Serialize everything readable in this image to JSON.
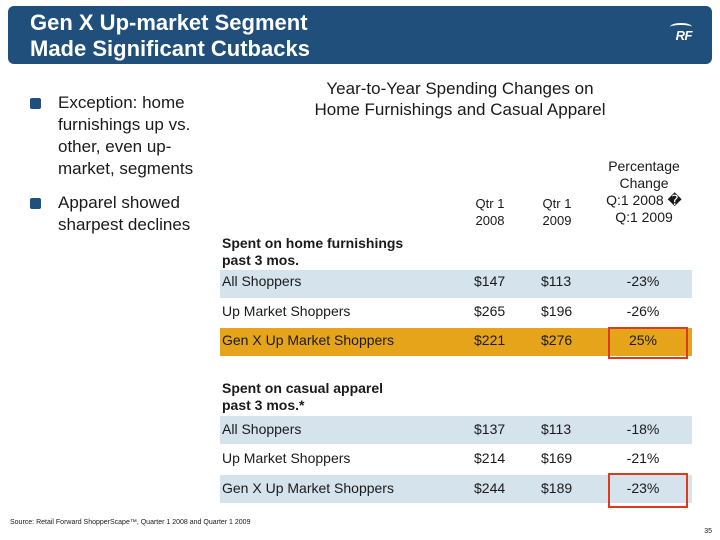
{
  "header": {
    "title_line1": "Gen X Up-market Segment",
    "title_line2": "Made Significant Cutbacks",
    "logo_text": "RF"
  },
  "bullets": [
    {
      "text": "Exception: home furnishings up vs. other, even up-market, segments"
    },
    {
      "text": "Apparel showed sharpest declines"
    }
  ],
  "table": {
    "title_line1": "Year-to-Year Spending Changes on",
    "title_line2": "Home Furnishings and Casual Apparel",
    "columns": {
      "qtr1_2008_line1": "Qtr 1",
      "qtr1_2008_line2": "2008",
      "qtr1_2009_line1": "Qtr 1",
      "qtr1_2009_line2": "2009",
      "pct_line1": "Percentage",
      "pct_line2": "Change",
      "pct_line3": "Q:1 2008 �",
      "pct_line4": "Q:1 2009"
    },
    "sections": [
      {
        "heading_line1": "Spent on home furnishings",
        "heading_line2": "past 3 mos.",
        "rows": [
          {
            "label": "All Shoppers",
            "q2008": "$147",
            "q2009": "$113",
            "pct": "-23%"
          },
          {
            "label": "Up Market Shoppers",
            "q2008": "$265",
            "q2009": "$196",
            "pct": "-26%"
          },
          {
            "label": "Gen X Up Market Shoppers",
            "q2008": "$221",
            "q2009": "$276",
            "pct": "25%"
          }
        ]
      },
      {
        "heading_line1": "Spent on casual apparel",
        "heading_line2": "past 3 mos.*",
        "rows": [
          {
            "label": "All Shoppers",
            "q2008": "$137",
            "q2009": "$113",
            "pct": "-18%"
          },
          {
            "label": "Up Market Shoppers",
            "q2008": "$214",
            "q2009": "$169",
            "pct": "-21%"
          },
          {
            "label": "Gen X Up Market Shoppers",
            "q2008": "$244",
            "q2009": "$189",
            "pct": "-23%"
          }
        ]
      }
    ]
  },
  "footer": {
    "source": "Source: Retail Forward ShopperScape™, Quarter 1 2008 and Quarter 1 2009",
    "page_number": "35"
  },
  "colors": {
    "header_bg": "#1f4f7a",
    "row_band_blue": "#d4e3ec",
    "row_band_gold": "#e6a41a",
    "highlight_border": "#e03a1e"
  }
}
